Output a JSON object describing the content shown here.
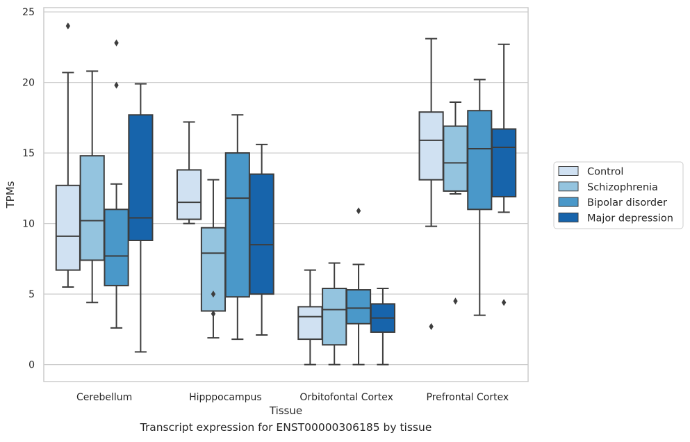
{
  "caption": "Transcript expression for ENST00000306185 by tissue",
  "chart_data": {
    "type": "boxplot",
    "title": "",
    "xlabel": "Tissue",
    "ylabel": "TPMs",
    "ylim": [
      -1.2,
      25.3
    ],
    "yticks": [
      0,
      5,
      10,
      15,
      20,
      25
    ],
    "grid": true,
    "legend_position": "outside-right",
    "categories": [
      "Cerebellum",
      "Hipppocampus",
      "Orbitofontal Cortex",
      "Prefrontal Cortex"
    ],
    "series": [
      {
        "name": "Control",
        "color": "#d0e1f2",
        "boxes": [
          {
            "whisker_low": 5.5,
            "q1": 6.7,
            "median": 9.1,
            "q3": 12.7,
            "whisker_high": 20.7,
            "outliers": [
              24.0
            ]
          },
          {
            "whisker_low": 10.0,
            "q1": 10.3,
            "median": 11.5,
            "q3": 13.8,
            "whisker_high": 17.2,
            "outliers": []
          },
          {
            "whisker_low": 0.0,
            "q1": 1.8,
            "median": 3.4,
            "q3": 4.1,
            "whisker_high": 6.7,
            "outliers": []
          },
          {
            "whisker_low": 9.8,
            "q1": 13.1,
            "median": 15.9,
            "q3": 17.9,
            "whisker_high": 23.1,
            "outliers": [
              2.7
            ]
          }
        ]
      },
      {
        "name": "Schizophrenia",
        "color": "#94c4df",
        "boxes": [
          {
            "whisker_low": 4.4,
            "q1": 7.4,
            "median": 10.2,
            "q3": 14.8,
            "whisker_high": 20.8,
            "outliers": []
          },
          {
            "whisker_low": 1.9,
            "q1": 3.8,
            "median": 7.9,
            "q3": 9.7,
            "whisker_high": 13.1,
            "outliers": [
              5.0,
              3.6
            ]
          },
          {
            "whisker_low": 0.0,
            "q1": 1.4,
            "median": 3.9,
            "q3": 5.4,
            "whisker_high": 7.2,
            "outliers": []
          },
          {
            "whisker_low": 12.1,
            "q1": 12.3,
            "median": 14.3,
            "q3": 16.9,
            "whisker_high": 18.6,
            "outliers": [
              4.5
            ]
          }
        ]
      },
      {
        "name": "Bipolar disorder",
        "color": "#4a98c9",
        "boxes": [
          {
            "whisker_low": 2.6,
            "q1": 5.6,
            "median": 7.7,
            "q3": 11.0,
            "whisker_high": 12.8,
            "outliers": [
              22.8,
              19.8
            ]
          },
          {
            "whisker_low": 1.8,
            "q1": 4.8,
            "median": 11.8,
            "q3": 15.0,
            "whisker_high": 17.7,
            "outliers": []
          },
          {
            "whisker_low": 0.0,
            "q1": 2.9,
            "median": 4.0,
            "q3": 5.3,
            "whisker_high": 7.1,
            "outliers": [
              10.9
            ]
          },
          {
            "whisker_low": 3.5,
            "q1": 11.0,
            "median": 15.3,
            "q3": 18.0,
            "whisker_high": 20.2,
            "outliers": []
          }
        ]
      },
      {
        "name": "Major depression",
        "color": "#1764ab",
        "boxes": [
          {
            "whisker_low": 0.9,
            "q1": 8.8,
            "median": 10.4,
            "q3": 17.7,
            "whisker_high": 19.9,
            "outliers": []
          },
          {
            "whisker_low": 2.1,
            "q1": 5.0,
            "median": 8.5,
            "q3": 13.5,
            "whisker_high": 15.6,
            "outliers": []
          },
          {
            "whisker_low": 0.0,
            "q1": 2.3,
            "median": 3.3,
            "q3": 4.3,
            "whisker_high": 5.4,
            "outliers": []
          },
          {
            "whisker_low": 10.8,
            "q1": 11.9,
            "median": 15.4,
            "q3": 16.7,
            "whisker_high": 22.7,
            "outliers": [
              4.4
            ]
          }
        ]
      }
    ]
  }
}
